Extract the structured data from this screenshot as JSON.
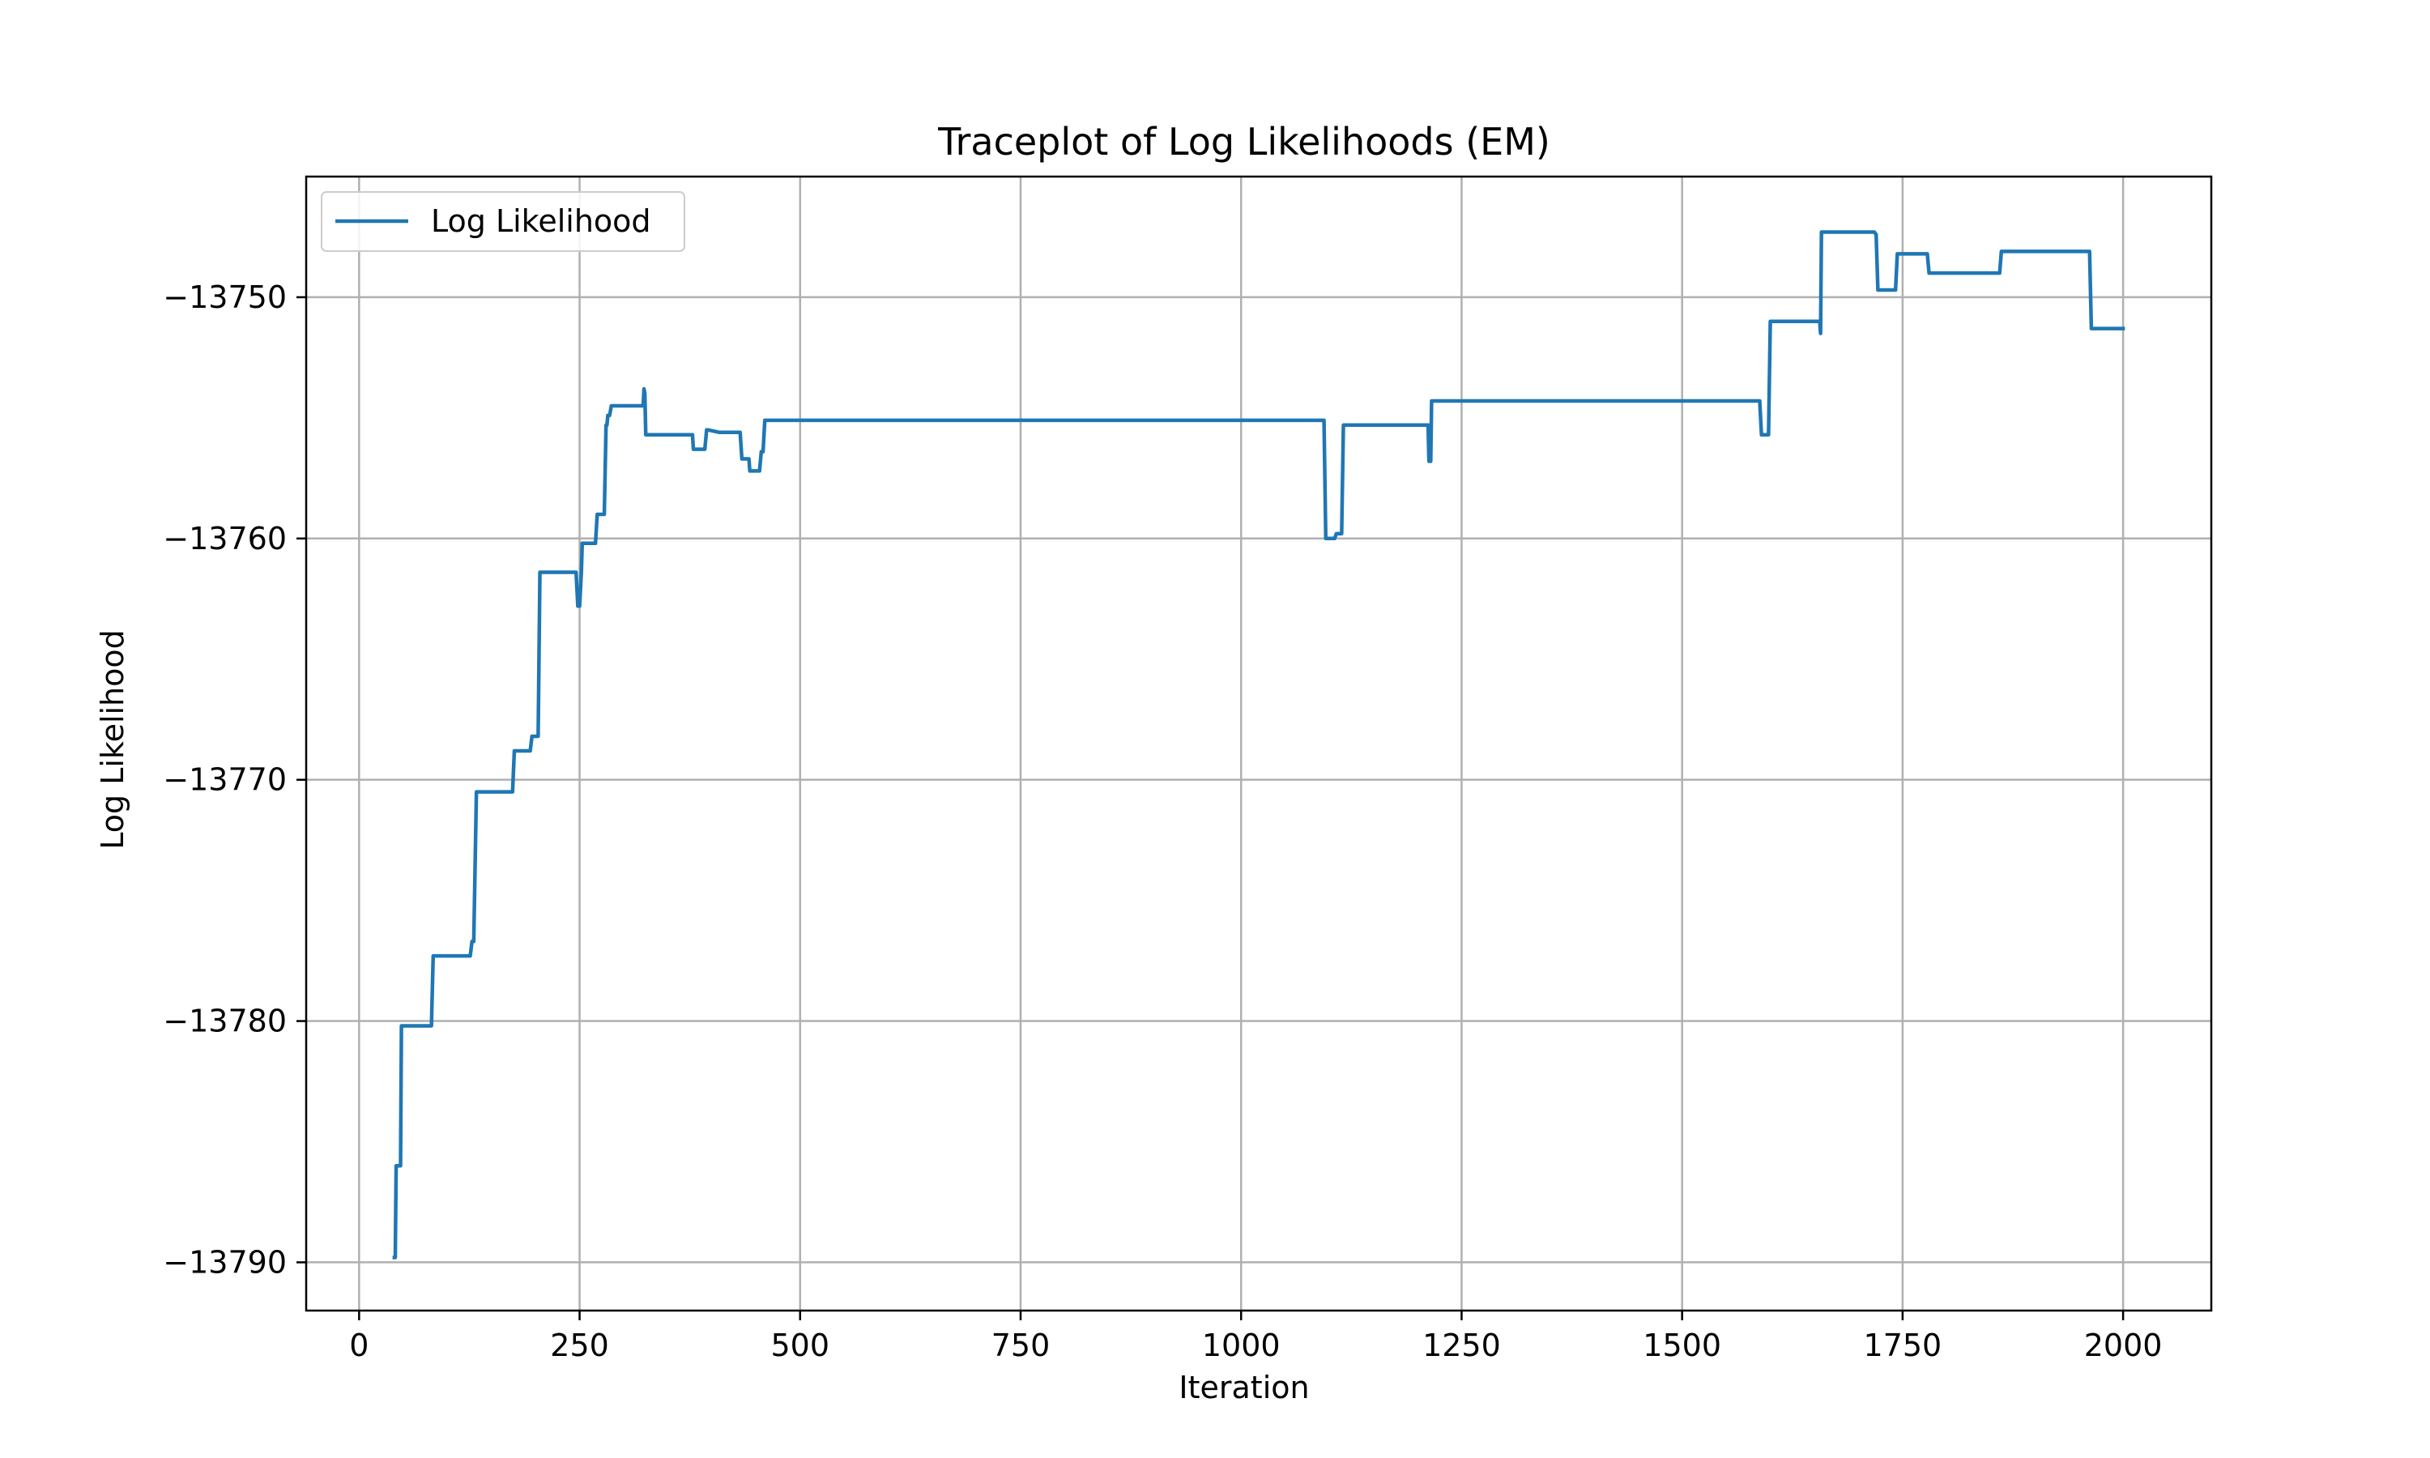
{
  "chart_data": {
    "type": "line",
    "title": "Traceplot of Log Likelihoods (EM)",
    "xlabel": "Iteration",
    "ylabel": "Log Likelihood",
    "xlim": [
      -60,
      2100
    ],
    "ylim": [
      -13792,
      -13745
    ],
    "xticks": [
      0,
      250,
      500,
      750,
      1000,
      1250,
      1500,
      1750,
      2000
    ],
    "yticks": [
      -13790,
      -13780,
      -13770,
      -13760,
      -13750
    ],
    "xtick_labels": [
      "0",
      "250",
      "500",
      "750",
      "1000",
      "1250",
      "1500",
      "1750",
      "2000"
    ],
    "ytick_labels": [
      "−13790",
      "−13780",
      "−13770",
      "−13760",
      "−13750"
    ],
    "grid": true,
    "legend_position": "top-left",
    "colors": {
      "line": "#1f77b4",
      "grid": "#b0b0b0"
    },
    "series": [
      {
        "name": "Log Likelihood",
        "x": [
          40,
          41,
          42,
          46,
          47,
          48,
          50,
          52,
          82,
          84,
          126,
          128,
          130,
          133,
          174,
          176,
          194,
          196,
          200,
          203,
          205,
          246,
          248,
          250,
          252,
          253,
          255,
          256,
          268,
          270,
          278,
          280,
          281,
          282,
          284,
          286,
          288,
          320,
          322,
          323,
          324,
          325,
          326,
          378,
          379,
          390,
          392,
          394,
          396,
          408,
          410,
          432,
          434,
          442,
          443,
          454,
          456,
          458,
          460,
          462,
          1094,
          1096,
          1106,
          1108,
          1114,
          1116,
          1118,
          1212,
          1213,
          1214,
          1215,
          1216,
          1218,
          1588,
          1590,
          1598,
          1600,
          1602,
          1656,
          1657,
          1658,
          1660,
          1718,
          1720,
          1722,
          1742,
          1744,
          1778,
          1780,
          1860,
          1862,
          1962,
          1964,
          2000
        ],
        "y": [
          -13789.8,
          -13789.8,
          -13786.0,
          -13786.0,
          -13786.0,
          -13780.2,
          -13780.2,
          -13780.2,
          -13780.2,
          -13777.3,
          -13777.3,
          -13776.7,
          -13776.7,
          -13770.5,
          -13770.5,
          -13768.8,
          -13768.8,
          -13768.2,
          -13768.2,
          -13768.2,
          -13761.4,
          -13761.4,
          -13762.8,
          -13762.8,
          -13761.4,
          -13760.2,
          -13760.2,
          -13760.2,
          -13760.2,
          -13759.0,
          -13759.0,
          -13755.3,
          -13755.3,
          -13754.9,
          -13754.9,
          -13754.5,
          -13754.5,
          -13754.5,
          -13754.5,
          -13753.8,
          -13754.0,
          -13755.7,
          -13755.7,
          -13755.7,
          -13756.3,
          -13756.3,
          -13756.3,
          -13755.5,
          -13755.5,
          -13755.6,
          -13755.6,
          -13755.6,
          -13756.7,
          -13756.7,
          -13757.2,
          -13757.2,
          -13756.4,
          -13756.4,
          -13755.1,
          -13755.1,
          -13755.1,
          -13760.0,
          -13760.0,
          -13759.8,
          -13759.8,
          -13755.3,
          -13755.3,
          -13755.3,
          -13756.8,
          -13755.3,
          -13756.8,
          -13754.3,
          -13754.3,
          -13754.3,
          -13755.7,
          -13755.7,
          -13751.0,
          -13751.0,
          -13751.0,
          -13751.5,
          -13747.3,
          -13747.3,
          -13747.3,
          -13747.4,
          -13749.7,
          -13749.7,
          -13748.2,
          -13748.2,
          -13749.0,
          -13749.0,
          -13748.1,
          -13748.1,
          -13751.3,
          -13751.3
        ]
      }
    ]
  }
}
